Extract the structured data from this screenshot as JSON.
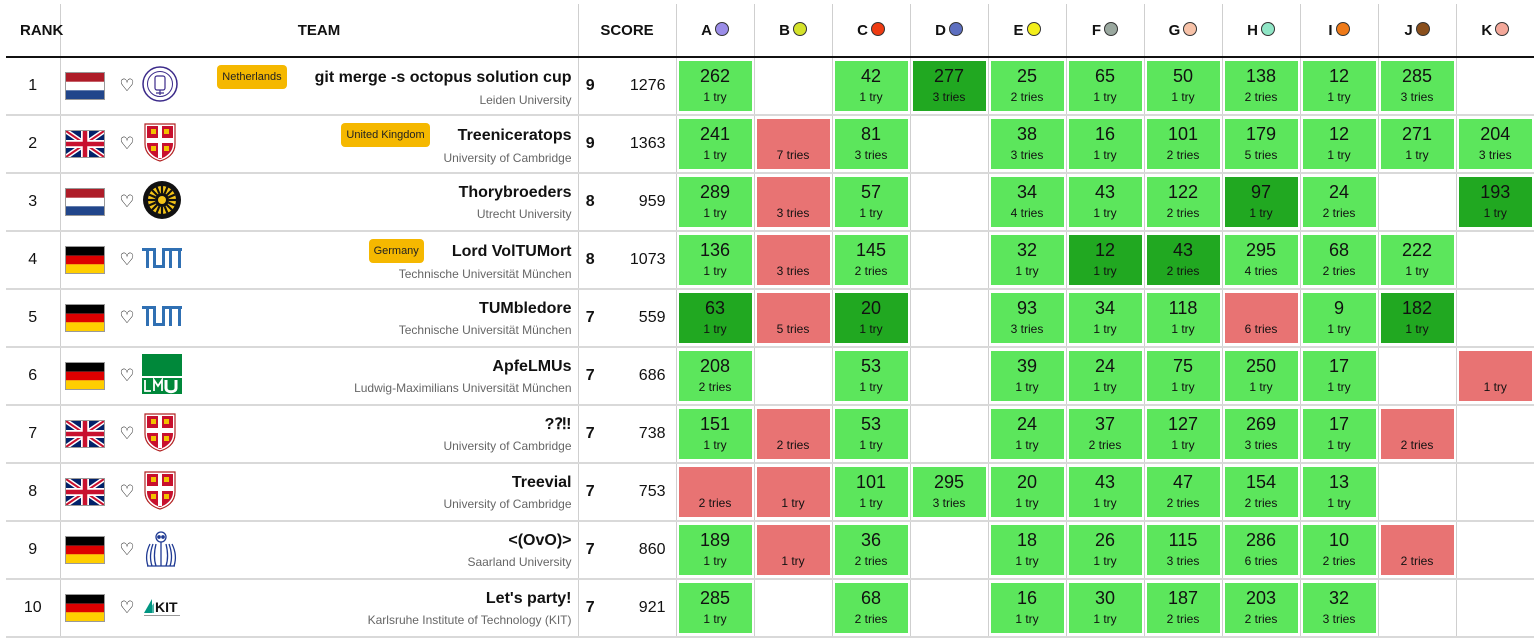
{
  "headers": {
    "rank": "RANK",
    "team": "TEAM",
    "score": "SCORE"
  },
  "problems": [
    {
      "letter": "A",
      "color": "#9b8de8"
    },
    {
      "letter": "B",
      "color": "#d4e22a"
    },
    {
      "letter": "C",
      "color": "#ee3b12"
    },
    {
      "letter": "D",
      "color": "#5d6fc0"
    },
    {
      "letter": "E",
      "color": "#f3ef1b"
    },
    {
      "letter": "F",
      "color": "#9aa89f"
    },
    {
      "letter": "G",
      "color": "#f7c2a8"
    },
    {
      "letter": "H",
      "color": "#90e6c6"
    },
    {
      "letter": "I",
      "color": "#ef7a18"
    },
    {
      "letter": "J",
      "color": "#8a4f1c"
    },
    {
      "letter": "K",
      "color": "#f4a89a"
    }
  ],
  "rows": [
    {
      "rank": "1",
      "country": "nl",
      "logo": "leiden",
      "badge": "Netherlands",
      "team": "git merge -s octopus solution cup",
      "university": "Leiden University",
      "solved": "9",
      "penalty": "1276",
      "cells": [
        {
          "s": "ok",
          "t": "262",
          "r": "1 try"
        },
        {
          "s": "empty"
        },
        {
          "s": "ok",
          "t": "42",
          "r": "1 try"
        },
        {
          "s": "first",
          "t": "277",
          "r": "3 tries"
        },
        {
          "s": "ok",
          "t": "25",
          "r": "2 tries"
        },
        {
          "s": "ok",
          "t": "65",
          "r": "1 try"
        },
        {
          "s": "ok",
          "t": "50",
          "r": "1 try"
        },
        {
          "s": "ok",
          "t": "138",
          "r": "2 tries"
        },
        {
          "s": "ok",
          "t": "12",
          "r": "1 try"
        },
        {
          "s": "ok",
          "t": "285",
          "r": "3 tries"
        },
        {
          "s": "empty"
        }
      ]
    },
    {
      "rank": "2",
      "country": "uk",
      "logo": "cambridge",
      "badge": "United Kingdom",
      "team": "Treeniceratops",
      "university": "University of Cambridge",
      "solved": "9",
      "penalty": "1363",
      "cells": [
        {
          "s": "ok",
          "t": "241",
          "r": "1 try"
        },
        {
          "s": "failed",
          "t": "",
          "r": "7 tries"
        },
        {
          "s": "ok",
          "t": "81",
          "r": "3 tries"
        },
        {
          "s": "empty"
        },
        {
          "s": "ok",
          "t": "38",
          "r": "3 tries"
        },
        {
          "s": "ok",
          "t": "16",
          "r": "1 try"
        },
        {
          "s": "ok",
          "t": "101",
          "r": "2 tries"
        },
        {
          "s": "ok",
          "t": "179",
          "r": "5 tries"
        },
        {
          "s": "ok",
          "t": "12",
          "r": "1 try"
        },
        {
          "s": "ok",
          "t": "271",
          "r": "1 try"
        },
        {
          "s": "ok",
          "t": "204",
          "r": "3 tries"
        }
      ]
    },
    {
      "rank": "3",
      "country": "nl",
      "logo": "utrecht",
      "badge": "",
      "team": "Thorybroeders",
      "university": "Utrecht University",
      "solved": "8",
      "penalty": "959",
      "cells": [
        {
          "s": "ok",
          "t": "289",
          "r": "1 try"
        },
        {
          "s": "failed",
          "t": "",
          "r": "3 tries"
        },
        {
          "s": "ok",
          "t": "57",
          "r": "1 try"
        },
        {
          "s": "empty"
        },
        {
          "s": "ok",
          "t": "34",
          "r": "4 tries"
        },
        {
          "s": "ok",
          "t": "43",
          "r": "1 try"
        },
        {
          "s": "ok",
          "t": "122",
          "r": "2 tries"
        },
        {
          "s": "first",
          "t": "97",
          "r": "1 try"
        },
        {
          "s": "ok",
          "t": "24",
          "r": "2 tries"
        },
        {
          "s": "empty"
        },
        {
          "s": "first",
          "t": "193",
          "r": "1 try"
        }
      ]
    },
    {
      "rank": "4",
      "country": "de",
      "logo": "tum",
      "badge": "Germany",
      "team": "Lord VolTUMort",
      "university": "Technische Universität München",
      "solved": "8",
      "penalty": "1073",
      "cells": [
        {
          "s": "ok",
          "t": "136",
          "r": "1 try"
        },
        {
          "s": "failed",
          "t": "",
          "r": "3 tries"
        },
        {
          "s": "ok",
          "t": "145",
          "r": "2 tries"
        },
        {
          "s": "empty"
        },
        {
          "s": "ok",
          "t": "32",
          "r": "1 try"
        },
        {
          "s": "first",
          "t": "12",
          "r": "1 try"
        },
        {
          "s": "first",
          "t": "43",
          "r": "2 tries"
        },
        {
          "s": "ok",
          "t": "295",
          "r": "4 tries"
        },
        {
          "s": "ok",
          "t": "68",
          "r": "2 tries"
        },
        {
          "s": "ok",
          "t": "222",
          "r": "1 try"
        },
        {
          "s": "empty"
        }
      ]
    },
    {
      "rank": "5",
      "country": "de",
      "logo": "tum",
      "badge": "",
      "team": "TUMbledore",
      "university": "Technische Universität München",
      "solved": "7",
      "penalty": "559",
      "cells": [
        {
          "s": "first",
          "t": "63",
          "r": "1 try"
        },
        {
          "s": "failed",
          "t": "",
          "r": "5 tries"
        },
        {
          "s": "first",
          "t": "20",
          "r": "1 try"
        },
        {
          "s": "empty"
        },
        {
          "s": "ok",
          "t": "93",
          "r": "3 tries"
        },
        {
          "s": "ok",
          "t": "34",
          "r": "1 try"
        },
        {
          "s": "ok",
          "t": "118",
          "r": "1 try"
        },
        {
          "s": "failed",
          "t": "",
          "r": "6 tries"
        },
        {
          "s": "ok",
          "t": "9",
          "r": "1 try"
        },
        {
          "s": "first",
          "t": "182",
          "r": "1 try"
        },
        {
          "s": "empty"
        }
      ]
    },
    {
      "rank": "6",
      "country": "de",
      "logo": "lmu",
      "badge": "",
      "team": "ApfeLMUs",
      "university": "Ludwig-Maximilians Universität München",
      "solved": "7",
      "penalty": "686",
      "cells": [
        {
          "s": "ok",
          "t": "208",
          "r": "2 tries"
        },
        {
          "s": "empty"
        },
        {
          "s": "ok",
          "t": "53",
          "r": "1 try"
        },
        {
          "s": "empty"
        },
        {
          "s": "ok",
          "t": "39",
          "r": "1 try"
        },
        {
          "s": "ok",
          "t": "24",
          "r": "1 try"
        },
        {
          "s": "ok",
          "t": "75",
          "r": "1 try"
        },
        {
          "s": "ok",
          "t": "250",
          "r": "1 try"
        },
        {
          "s": "ok",
          "t": "17",
          "r": "1 try"
        },
        {
          "s": "empty"
        },
        {
          "s": "failed",
          "t": "",
          "r": "1 try"
        }
      ]
    },
    {
      "rank": "7",
      "country": "uk",
      "logo": "cambridge",
      "badge": "",
      "team": "?⁈!",
      "university": "University of Cambridge",
      "solved": "7",
      "penalty": "738",
      "cells": [
        {
          "s": "ok",
          "t": "151",
          "r": "1 try"
        },
        {
          "s": "failed",
          "t": "",
          "r": "2 tries"
        },
        {
          "s": "ok",
          "t": "53",
          "r": "1 try"
        },
        {
          "s": "empty"
        },
        {
          "s": "ok",
          "t": "24",
          "r": "1 try"
        },
        {
          "s": "ok",
          "t": "37",
          "r": "2 tries"
        },
        {
          "s": "ok",
          "t": "127",
          "r": "1 try"
        },
        {
          "s": "ok",
          "t": "269",
          "r": "3 tries"
        },
        {
          "s": "ok",
          "t": "17",
          "r": "1 try"
        },
        {
          "s": "failed",
          "t": "",
          "r": "2 tries"
        },
        {
          "s": "empty"
        }
      ]
    },
    {
      "rank": "8",
      "country": "uk",
      "logo": "cambridge",
      "badge": "",
      "team": "Treevial",
      "university": "University of Cambridge",
      "solved": "7",
      "penalty": "753",
      "cells": [
        {
          "s": "failed",
          "t": "",
          "r": "2 tries"
        },
        {
          "s": "failed",
          "t": "",
          "r": "1 try"
        },
        {
          "s": "ok",
          "t": "101",
          "r": "1 try"
        },
        {
          "s": "ok",
          "t": "295",
          "r": "3 tries"
        },
        {
          "s": "ok",
          "t": "20",
          "r": "1 try"
        },
        {
          "s": "ok",
          "t": "43",
          "r": "1 try"
        },
        {
          "s": "ok",
          "t": "47",
          "r": "2 tries"
        },
        {
          "s": "ok",
          "t": "154",
          "r": "2 tries"
        },
        {
          "s": "ok",
          "t": "13",
          "r": "1 try"
        },
        {
          "s": "empty"
        },
        {
          "s": "empty"
        }
      ]
    },
    {
      "rank": "9",
      "country": "de",
      "logo": "saarland",
      "badge": "",
      "team": "<(OvO)>",
      "university": "Saarland University",
      "solved": "7",
      "penalty": "860",
      "cells": [
        {
          "s": "ok",
          "t": "189",
          "r": "1 try"
        },
        {
          "s": "failed",
          "t": "",
          "r": "1 try"
        },
        {
          "s": "ok",
          "t": "36",
          "r": "2 tries"
        },
        {
          "s": "empty"
        },
        {
          "s": "ok",
          "t": "18",
          "r": "1 try"
        },
        {
          "s": "ok",
          "t": "26",
          "r": "1 try"
        },
        {
          "s": "ok",
          "t": "115",
          "r": "3 tries"
        },
        {
          "s": "ok",
          "t": "286",
          "r": "6 tries"
        },
        {
          "s": "ok",
          "t": "10",
          "r": "2 tries"
        },
        {
          "s": "failed",
          "t": "",
          "r": "2 tries"
        },
        {
          "s": "empty"
        }
      ]
    },
    {
      "rank": "10",
      "country": "de",
      "logo": "kit",
      "badge": "",
      "team": "Let's party!",
      "university": "Karlsruhe Institute of Technology (KIT)",
      "solved": "7",
      "penalty": "921",
      "cells": [
        {
          "s": "ok",
          "t": "285",
          "r": "1 try"
        },
        {
          "s": "empty"
        },
        {
          "s": "ok",
          "t": "68",
          "r": "2 tries"
        },
        {
          "s": "empty"
        },
        {
          "s": "ok",
          "t": "16",
          "r": "1 try"
        },
        {
          "s": "ok",
          "t": "30",
          "r": "1 try"
        },
        {
          "s": "ok",
          "t": "187",
          "r": "2 tries"
        },
        {
          "s": "ok",
          "t": "203",
          "r": "2 tries"
        },
        {
          "s": "ok",
          "t": "32",
          "r": "3 tries"
        },
        {
          "s": "empty"
        },
        {
          "s": "empty"
        }
      ]
    }
  ]
}
